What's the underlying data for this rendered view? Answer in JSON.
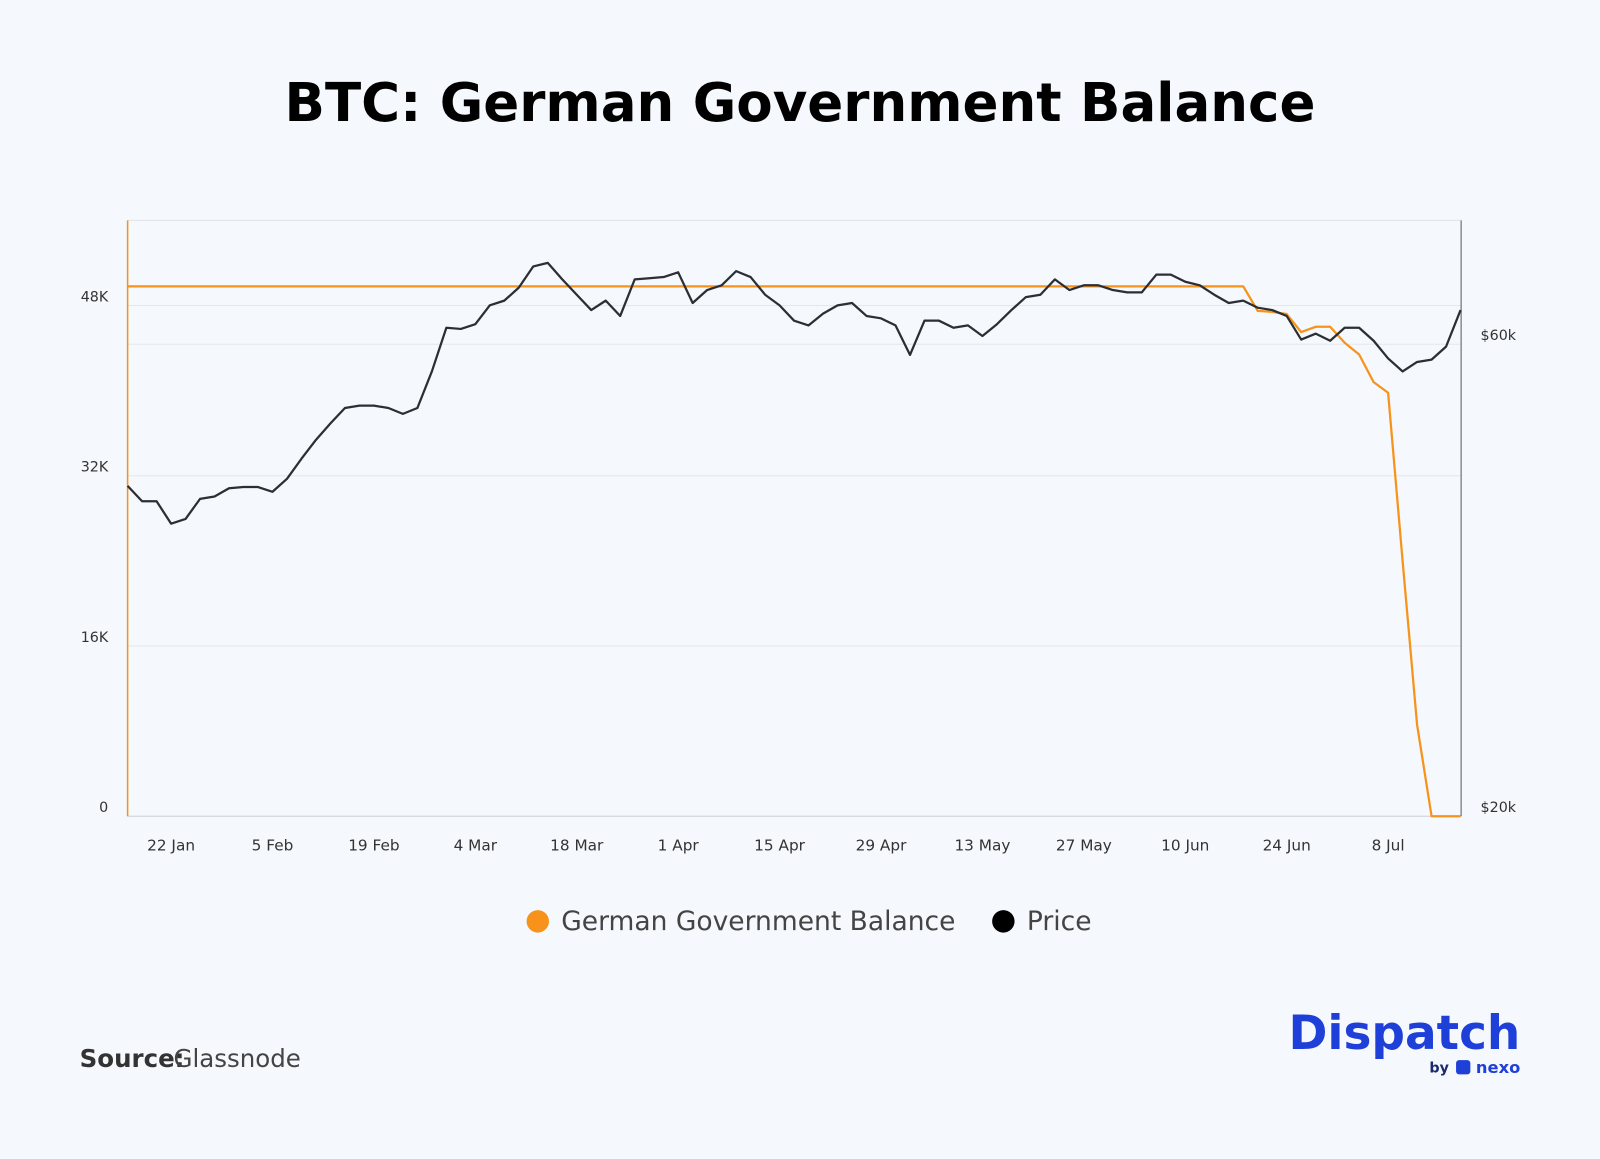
{
  "chart_data": {
    "type": "line",
    "title": "BTC: German Government Balance",
    "categories": [
      null,
      null,
      null,
      "22 Jan",
      null,
      null,
      null,
      null,
      null,
      null,
      "5 Feb",
      null,
      null,
      null,
      null,
      null,
      null,
      "19 Feb",
      null,
      null,
      null,
      null,
      null,
      null,
      "4 Mar",
      null,
      null,
      null,
      null,
      null,
      null,
      "18 Mar",
      null,
      null,
      null,
      null,
      null,
      null,
      "1 Apr",
      null,
      null,
      null,
      null,
      null,
      null,
      "15 Apr",
      null,
      null,
      null,
      null,
      null,
      null,
      "29 Apr",
      null,
      null,
      null,
      null,
      null,
      null,
      "13 May",
      null,
      null,
      null,
      null,
      null,
      null,
      "27 May",
      null,
      null,
      null,
      null,
      null,
      null,
      "10 Jun",
      null,
      null,
      null,
      null,
      null,
      null,
      "24 Jun",
      null,
      null,
      null,
      null,
      null,
      null,
      "8 Jul",
      null,
      null,
      null,
      null,
      null
    ],
    "series": [
      {
        "name": "German Government Balance",
        "color": "#f7931a",
        "values": [
          49800,
          49800,
          49800,
          49800,
          49800,
          49800,
          49800,
          49800,
          49800,
          49800,
          49800,
          49800,
          49800,
          49800,
          49800,
          49800,
          49800,
          49800,
          49800,
          49800,
          49800,
          49800,
          49800,
          49800,
          49800,
          49800,
          49800,
          49800,
          49800,
          49800,
          49800,
          49800,
          49800,
          49800,
          49800,
          49800,
          49800,
          49800,
          49800,
          49800,
          49800,
          49800,
          49800,
          49800,
          49800,
          49800,
          49800,
          49800,
          49800,
          49800,
          49800,
          49800,
          49800,
          49800,
          49800,
          49800,
          49800,
          49800,
          49800,
          49800,
          49800,
          49800,
          49800,
          49800,
          49800,
          49800,
          49800,
          49800,
          49800,
          49800,
          49800,
          49800,
          49800,
          49800,
          49800,
          49800,
          49800,
          49800,
          47500,
          47400,
          47200,
          45500,
          46000,
          46000,
          44500,
          43400,
          40800,
          39800,
          24000,
          8600,
          0,
          0,
          0
        ]
      },
      {
        "name": "Price",
        "color": "#2b2f33",
        "axis": "y2",
        "values": [
          48000,
          46700,
          46700,
          44800,
          45200,
          46900,
          47100,
          47800,
          47900,
          47900,
          47500,
          48600,
          50300,
          51900,
          53300,
          54600,
          54800,
          54800,
          54600,
          54100,
          54600,
          57700,
          61400,
          61300,
          61700,
          63300,
          63700,
          64800,
          66600,
          66900,
          65500,
          64200,
          62900,
          63700,
          62400,
          65500,
          65600,
          65700,
          66100,
          63500,
          64600,
          65000,
          66200,
          65700,
          64200,
          63300,
          62000,
          61600,
          62600,
          63300,
          63500,
          62400,
          62200,
          61600,
          59100,
          62000,
          62000,
          61400,
          61600,
          60700,
          61700,
          62900,
          64000,
          64200,
          65500,
          64600,
          65000,
          65000,
          64600,
          64400,
          64400,
          65900,
          65900,
          65300,
          65000,
          64200,
          63500,
          63700,
          63100,
          62900,
          62400,
          60400,
          60900,
          60300,
          61400,
          61400,
          60300,
          58800,
          57700,
          58500,
          58700,
          59800,
          62900
        ]
      }
    ],
    "ylim": [
      0,
      56000
    ],
    "yticks": [
      0,
      {
        "value": 16000,
        "label": "16K"
      },
      {
        "value": 32000,
        "label": "32K"
      },
      {
        "value": 48000,
        "label": "48K"
      }
    ],
    "y2lim": [
      20000,
      70500
    ],
    "y2ticks": [
      {
        "value": 20000,
        "label": "$20k"
      },
      {
        "value": 60000,
        "label": "$60k"
      }
    ],
    "grid": true,
    "legend": "bottom"
  },
  "source": {
    "label": "Source:",
    "text": "Glassnode"
  },
  "branding": {
    "name": "Dispatch",
    "by": "by",
    "partner": "nexo"
  }
}
